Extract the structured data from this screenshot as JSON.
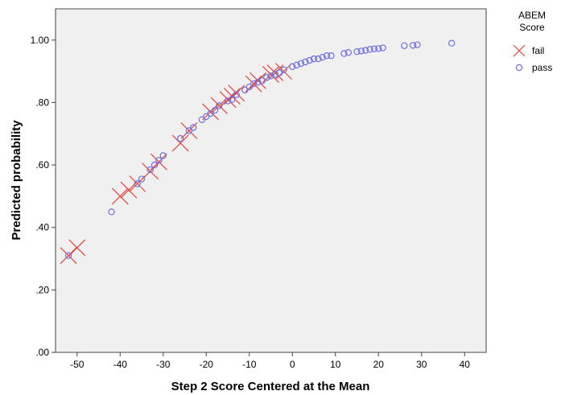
{
  "chart_data": {
    "type": "scatter",
    "xlabel": "Step 2 Score Centered at the Mean",
    "ylabel": "Predicted probability",
    "xlim": [
      -55,
      45
    ],
    "ylim": [
      0,
      1.1
    ],
    "x_ticks": [
      {
        "value": -50,
        "label": "-50"
      },
      {
        "value": -40,
        "label": "-40"
      },
      {
        "value": -30,
        "label": "-30"
      },
      {
        "value": -20,
        "label": "-20"
      },
      {
        "value": -10,
        "label": "-10"
      },
      {
        "value": 0,
        "label": "0"
      },
      {
        "value": 10,
        "label": "10"
      },
      {
        "value": 20,
        "label": "20"
      },
      {
        "value": 30,
        "label": "30"
      },
      {
        "value": 40,
        "label": "40"
      }
    ],
    "y_ticks": [
      {
        "value": 0.0,
        "label": ".00"
      },
      {
        "value": 0.2,
        "label": ".20"
      },
      {
        "value": 0.4,
        "label": ".40"
      },
      {
        "value": 0.6,
        "label": ".60"
      },
      {
        "value": 0.8,
        "label": ".80"
      },
      {
        "value": 1.0,
        "label": "1.00"
      }
    ],
    "grid": false,
    "legend": {
      "title": "ABEM\nScore",
      "position": "right"
    },
    "series": [
      {
        "name": "fail",
        "marker": "x",
        "color": "#e8453c",
        "x": [
          -52,
          -50,
          -40,
          -38,
          -36,
          -33,
          -31,
          -26,
          -24,
          -19,
          -17,
          -15,
          -14,
          -13,
          -9,
          -8,
          -5,
          -4,
          -2
        ],
        "y": [
          0.31,
          0.335,
          0.5,
          0.52,
          0.54,
          0.58,
          0.61,
          0.67,
          0.71,
          0.77,
          0.79,
          0.81,
          0.82,
          0.83,
          0.86,
          0.87,
          0.89,
          0.895,
          0.9
        ]
      },
      {
        "name": "pass",
        "marker": "o",
        "color": "#6f6fe6",
        "x": [
          -52,
          -42,
          -36,
          -35,
          -33,
          -32,
          -31,
          -30,
          -26,
          -24,
          -23,
          -21,
          -20,
          -19,
          -18,
          -17,
          -15,
          -14,
          -13,
          -11,
          -10,
          -9,
          -8,
          -7,
          -6,
          -5,
          -4,
          -3,
          -2,
          0,
          1,
          2,
          3,
          4,
          5,
          6,
          7,
          8,
          9,
          12,
          13,
          15,
          16,
          17,
          18,
          19,
          20,
          21,
          26,
          28,
          29,
          37
        ],
        "y": [
          0.31,
          0.45,
          0.54,
          0.555,
          0.585,
          0.6,
          0.615,
          0.63,
          0.685,
          0.71,
          0.72,
          0.745,
          0.755,
          0.765,
          0.775,
          0.79,
          0.805,
          0.81,
          0.825,
          0.84,
          0.85,
          0.86,
          0.865,
          0.87,
          0.88,
          0.885,
          0.89,
          0.895,
          0.905,
          0.915,
          0.92,
          0.925,
          0.93,
          0.935,
          0.94,
          0.94,
          0.945,
          0.95,
          0.95,
          0.957,
          0.96,
          0.963,
          0.965,
          0.967,
          0.97,
          0.972,
          0.973,
          0.975,
          0.982,
          0.983,
          0.985,
          0.99
        ]
      }
    ]
  }
}
